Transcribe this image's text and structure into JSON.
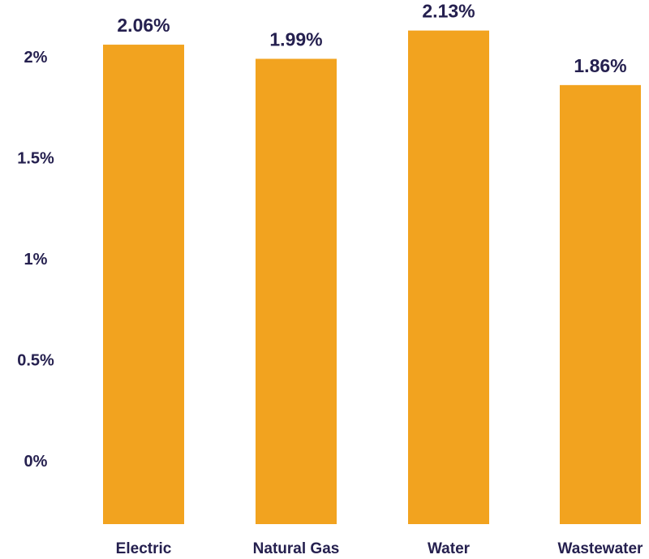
{
  "chart_data": {
    "type": "bar",
    "categories": [
      "Electric",
      "Natural Gas",
      "Water",
      "Wastewater"
    ],
    "values": [
      2.06,
      1.99,
      2.13,
      1.86
    ],
    "data_labels": [
      "2.06%",
      "1.99%",
      "2.13%",
      "1.86%"
    ],
    "y_ticks": [
      0,
      0.5,
      1,
      1.5,
      2
    ],
    "y_tick_labels": [
      "0%",
      "0.5%",
      "1%",
      "1.5%",
      "2%"
    ],
    "ylim": [
      -0.31,
      2.4
    ],
    "grid": false,
    "legend": "none",
    "title": "",
    "xlabel": "",
    "ylabel": ""
  },
  "colors": {
    "bar": "#f2a31f",
    "text": "#25204f",
    "background": "#ffffff"
  }
}
